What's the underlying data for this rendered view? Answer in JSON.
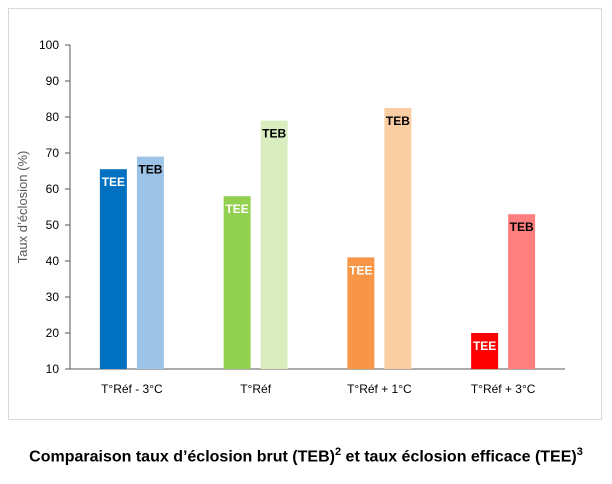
{
  "chart_data": {
    "type": "bar",
    "title": "",
    "ylabel": "Taux d’éclosion (%)",
    "xlabel": "",
    "ylim": [
      10,
      100
    ],
    "yticks": [
      10,
      20,
      30,
      40,
      50,
      60,
      70,
      80,
      90,
      100
    ],
    "categories": [
      "T°Réf - 3°C",
      "T°Réf",
      "T°Réf + 1°C",
      "T°Réf + 3°C"
    ],
    "series": [
      {
        "name": "TEE",
        "values": [
          65.5,
          58,
          41,
          20
        ],
        "colors": [
          "#0070C0",
          "#92D050",
          "#F79646",
          "#FF0000"
        ],
        "label_color": "#ffffff"
      },
      {
        "name": "TEB",
        "values": [
          69,
          79,
          82.5,
          53
        ],
        "colors": [
          "#9DC3E6",
          "#D9EDBF",
          "#FBCDA3",
          "#FF7F7F"
        ],
        "label_color": "#000000"
      }
    ],
    "legend": "none",
    "grid": false
  },
  "caption": {
    "text_a": "Comparaison taux d’éclosion brut (TEB)",
    "sup_a": "2",
    "text_b": " et taux éclosion efficace (TEE)",
    "sup_b": "3"
  }
}
